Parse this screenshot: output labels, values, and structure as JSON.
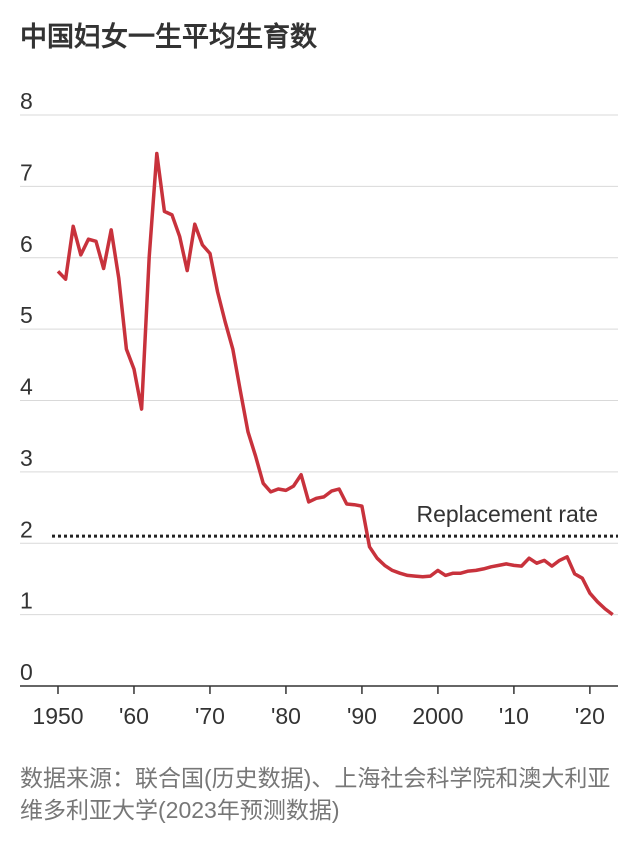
{
  "chart_data": {
    "type": "line",
    "title": "中国妇女一生平均生育数",
    "x": [
      1950,
      1951,
      1952,
      1953,
      1954,
      1955,
      1956,
      1957,
      1958,
      1959,
      1960,
      1961,
      1962,
      1963,
      1964,
      1965,
      1966,
      1967,
      1968,
      1969,
      1970,
      1971,
      1972,
      1973,
      1974,
      1975,
      1976,
      1977,
      1978,
      1979,
      1980,
      1981,
      1982,
      1983,
      1984,
      1985,
      1986,
      1987,
      1988,
      1989,
      1990,
      1991,
      1992,
      1993,
      1994,
      1995,
      1996,
      1997,
      1998,
      1999,
      2000,
      2001,
      2002,
      2003,
      2004,
      2005,
      2006,
      2007,
      2008,
      2009,
      2010,
      2011,
      2012,
      2013,
      2014,
      2015,
      2016,
      2017,
      2018,
      2019,
      2020,
      2021,
      2022,
      2023
    ],
    "series": [
      {
        "color": "#c8323c",
        "values": [
          5.81,
          5.7,
          6.44,
          6.04,
          6.26,
          6.23,
          5.85,
          6.39,
          5.71,
          4.72,
          4.44,
          3.88,
          6.01,
          7.46,
          6.65,
          6.6,
          6.3,
          5.82,
          6.47,
          6.18,
          6.06,
          5.52,
          5.1,
          4.72,
          4.13,
          3.56,
          3.22,
          2.84,
          2.72,
          2.76,
          2.74,
          2.8,
          2.96,
          2.58,
          2.63,
          2.65,
          2.73,
          2.76,
          2.55,
          2.54,
          2.52,
          1.95,
          1.79,
          1.69,
          1.62,
          1.58,
          1.55,
          1.54,
          1.53,
          1.54,
          1.62,
          1.55,
          1.58,
          1.58,
          1.61,
          1.62,
          1.64,
          1.67,
          1.69,
          1.71,
          1.69,
          1.68,
          1.79,
          1.72,
          1.76,
          1.68,
          1.76,
          1.81,
          1.57,
          1.51,
          1.3,
          1.18,
          1.08,
          1.0
        ]
      }
    ],
    "xlim": [
      1945,
      2023.7
    ],
    "xticks": [
      1950,
      {
        "value": 1960,
        "label": "'60"
      },
      {
        "value": 1970,
        "label": "'70"
      },
      {
        "value": 1980,
        "label": "'80"
      },
      {
        "value": 1990,
        "label": "'90"
      },
      2000,
      {
        "value": 2010,
        "label": "'10"
      },
      {
        "value": 2020,
        "label": "'20"
      }
    ],
    "ylim": [
      0,
      8
    ],
    "yticks": [
      0,
      1,
      2,
      3,
      4,
      5,
      6,
      7,
      8
    ],
    "grid": true,
    "reference_line": {
      "value": 2.1,
      "label": "Replacement rate"
    },
    "source": "数据来源：联合国(历史数据)、上海社会科学院和澳大利亚维多利亚大学(2023年预测数据)"
  }
}
